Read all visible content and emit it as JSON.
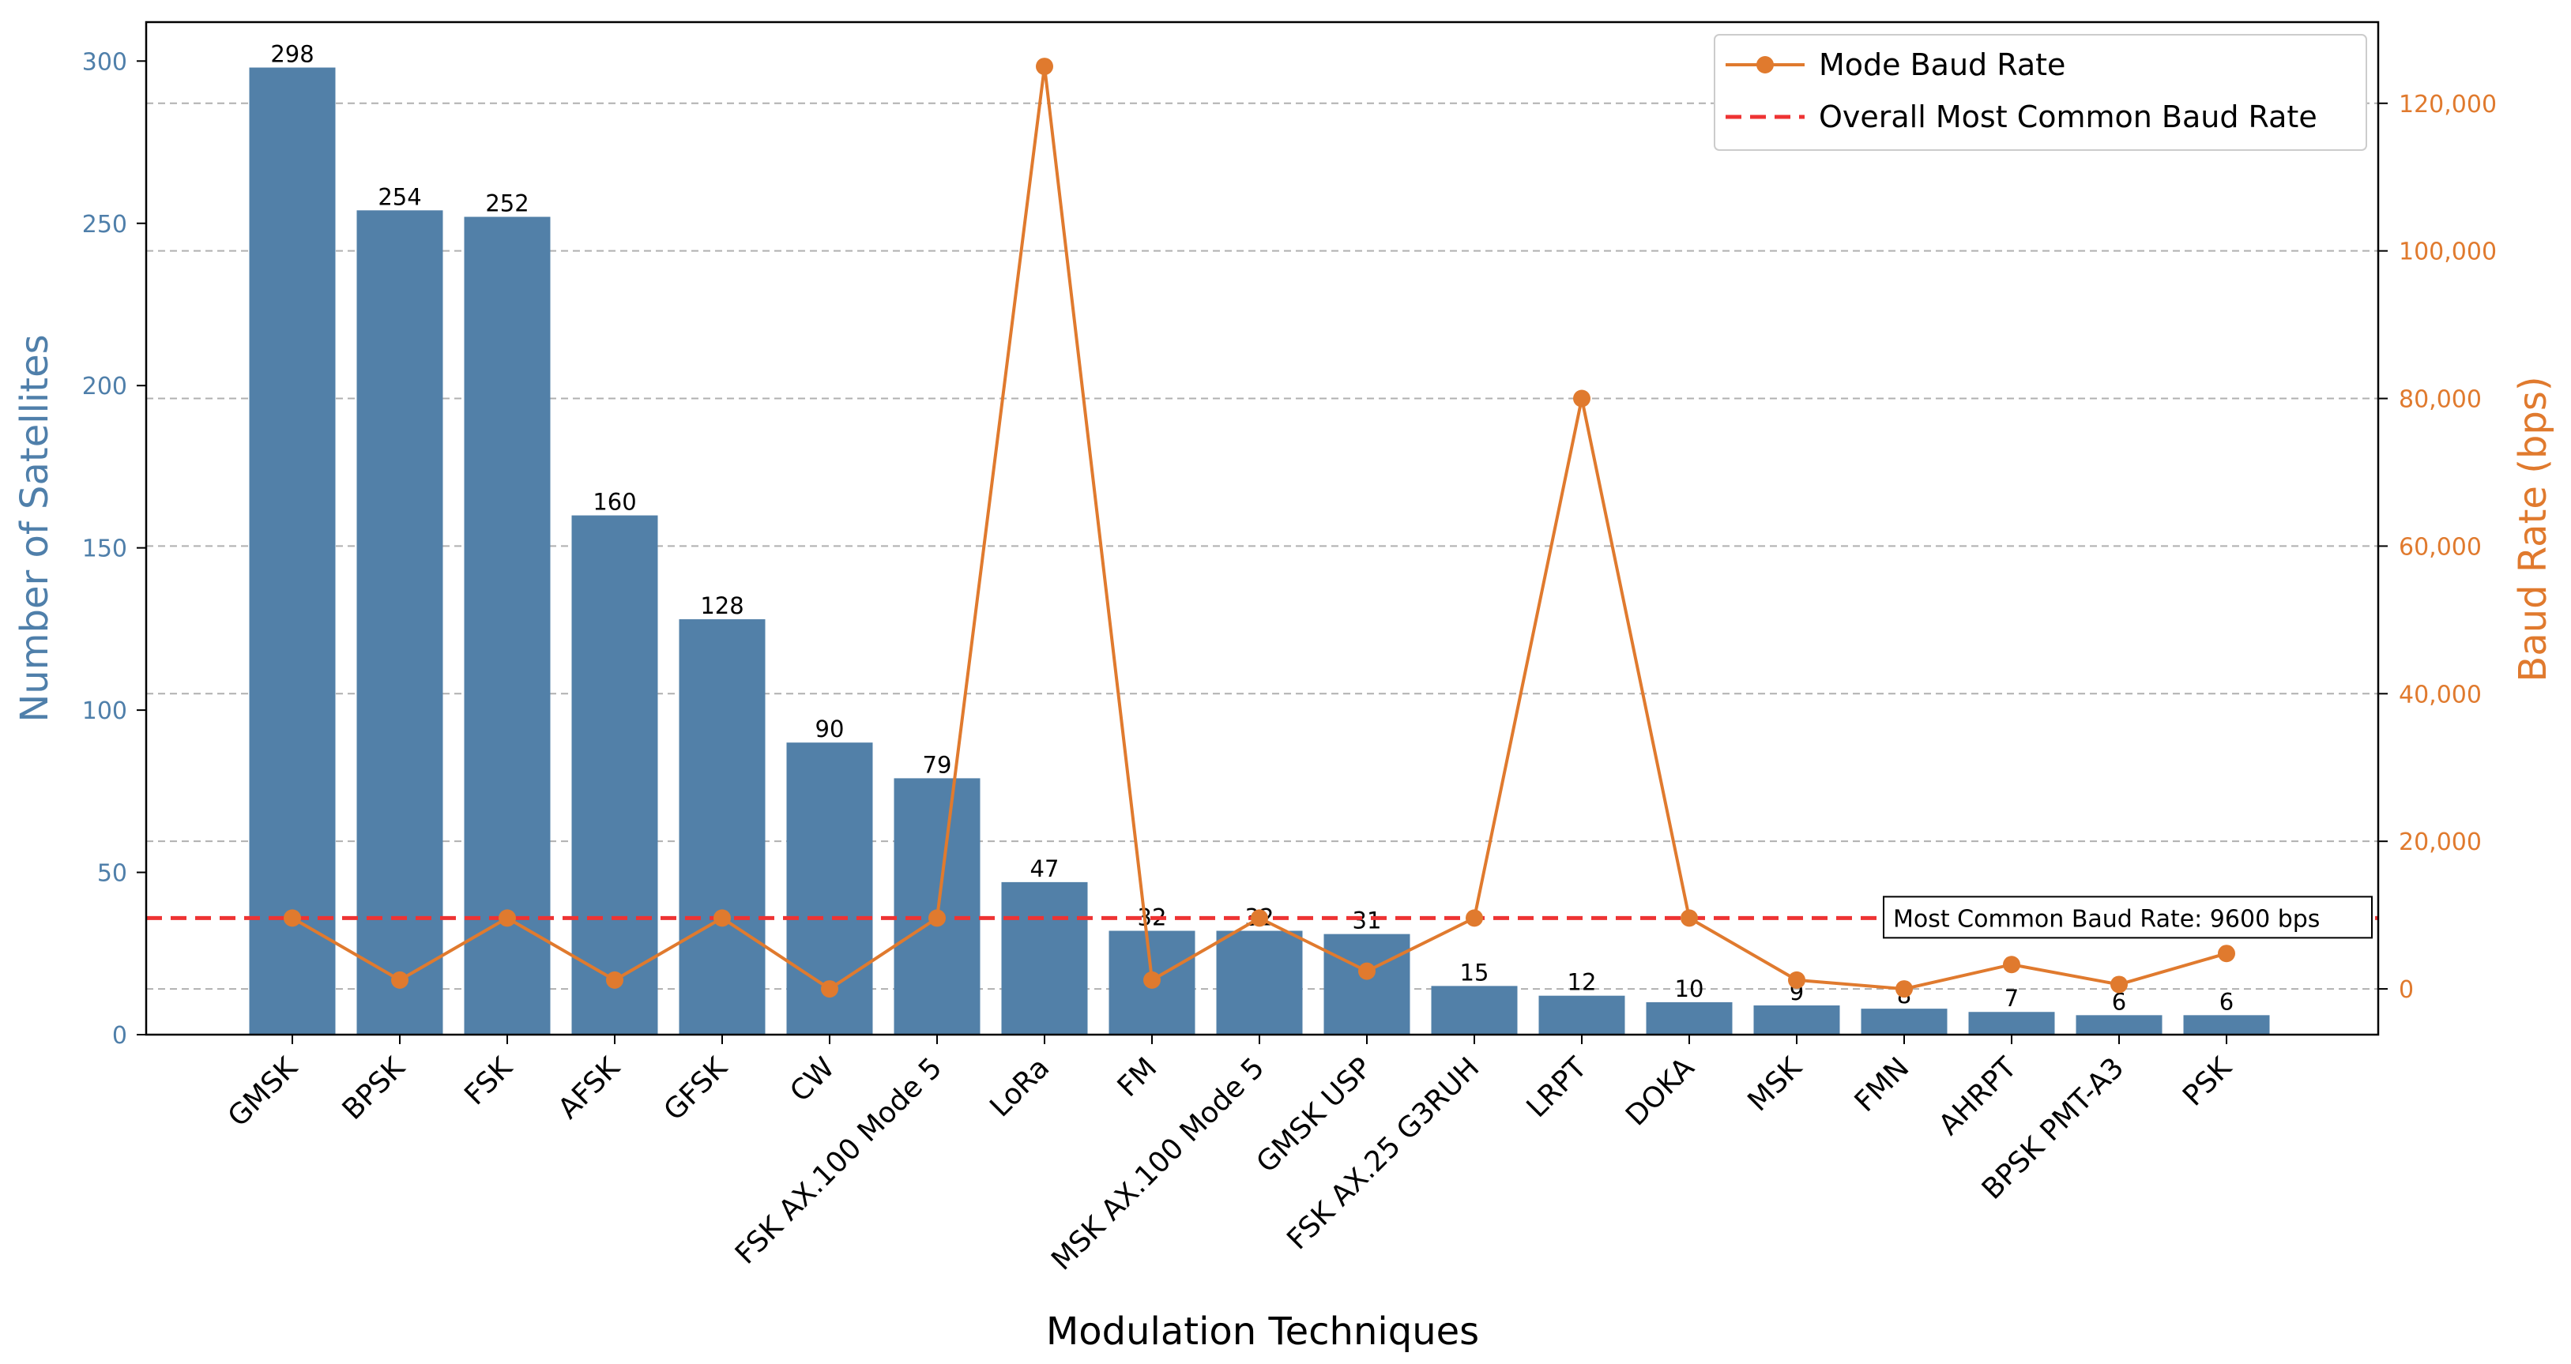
{
  "chart_data": {
    "type": "bar",
    "categories": [
      "GMSK",
      "BPSK",
      "FSK",
      "AFSK",
      "GFSK",
      "CW",
      "FSK AX.100 Mode 5",
      "LoRa",
      "FM",
      "MSK AX.100 Mode 5",
      "GMSK USP",
      "FSK AX.25 G3RUH",
      "LRPT",
      "DOKA",
      "MSK",
      "FMN",
      "AHRPT",
      "BPSK PMT-A3",
      "PSK"
    ],
    "series": [
      {
        "name": "",
        "type": "bar",
        "axis": "left",
        "values": [
          298,
          254,
          252,
          160,
          128,
          90,
          79,
          47,
          32,
          32,
          31,
          15,
          12,
          10,
          9,
          8,
          7,
          6,
          6
        ],
        "value_labels": [
          "298",
          "254",
          "252",
          "160",
          "128",
          "90",
          "79",
          "47",
          "32",
          "32",
          "31",
          "15",
          "12",
          "10",
          "9",
          "8",
          "7",
          "6",
          "6"
        ],
        "color": "#5280a8"
      },
      {
        "name": "Mode Baud Rate",
        "type": "line",
        "axis": "right",
        "values": [
          9600,
          1200,
          9600,
          1200,
          9600,
          0,
          9600,
          125000,
          1200,
          9600,
          2400,
          9600,
          80000,
          9600,
          1200,
          0,
          3300,
          600,
          4800
        ],
        "color": "#e07a2e"
      },
      {
        "name": "Overall Most Common Baud Rate",
        "type": "hline",
        "axis": "right",
        "value": 9600,
        "color": "#ee3333"
      }
    ],
    "annotation": "Most Common Baud Rate: 9600 bps",
    "xlabel": "Modulation Techniques",
    "ylabel_left": "Number of Satellites",
    "ylabel_right": "Baud Rate (bps)",
    "ylim_left": [
      0,
      312
    ],
    "ylim_right": [
      -6200,
      131000
    ],
    "yticks_left": [
      0,
      50,
      100,
      150,
      200,
      250,
      300
    ],
    "yticks_left_labels": [
      "0",
      "50",
      "100",
      "150",
      "200",
      "250",
      "300"
    ],
    "yticks_right": [
      0,
      20000,
      40000,
      60000,
      80000,
      100000,
      120000
    ],
    "yticks_right_labels": [
      "0",
      "20,000",
      "40,000",
      "60,000",
      "80,000",
      "100,000",
      "120,000"
    ],
    "grid": "horizontal-dashed",
    "legend_position": "top-right",
    "colors": {
      "bar": "#5280a8",
      "line": "#e07a2e",
      "hline": "#ee3333",
      "left_axis": "#4f7faa",
      "right_axis": "#e07a2e",
      "grid": "#b0b0b0"
    }
  }
}
